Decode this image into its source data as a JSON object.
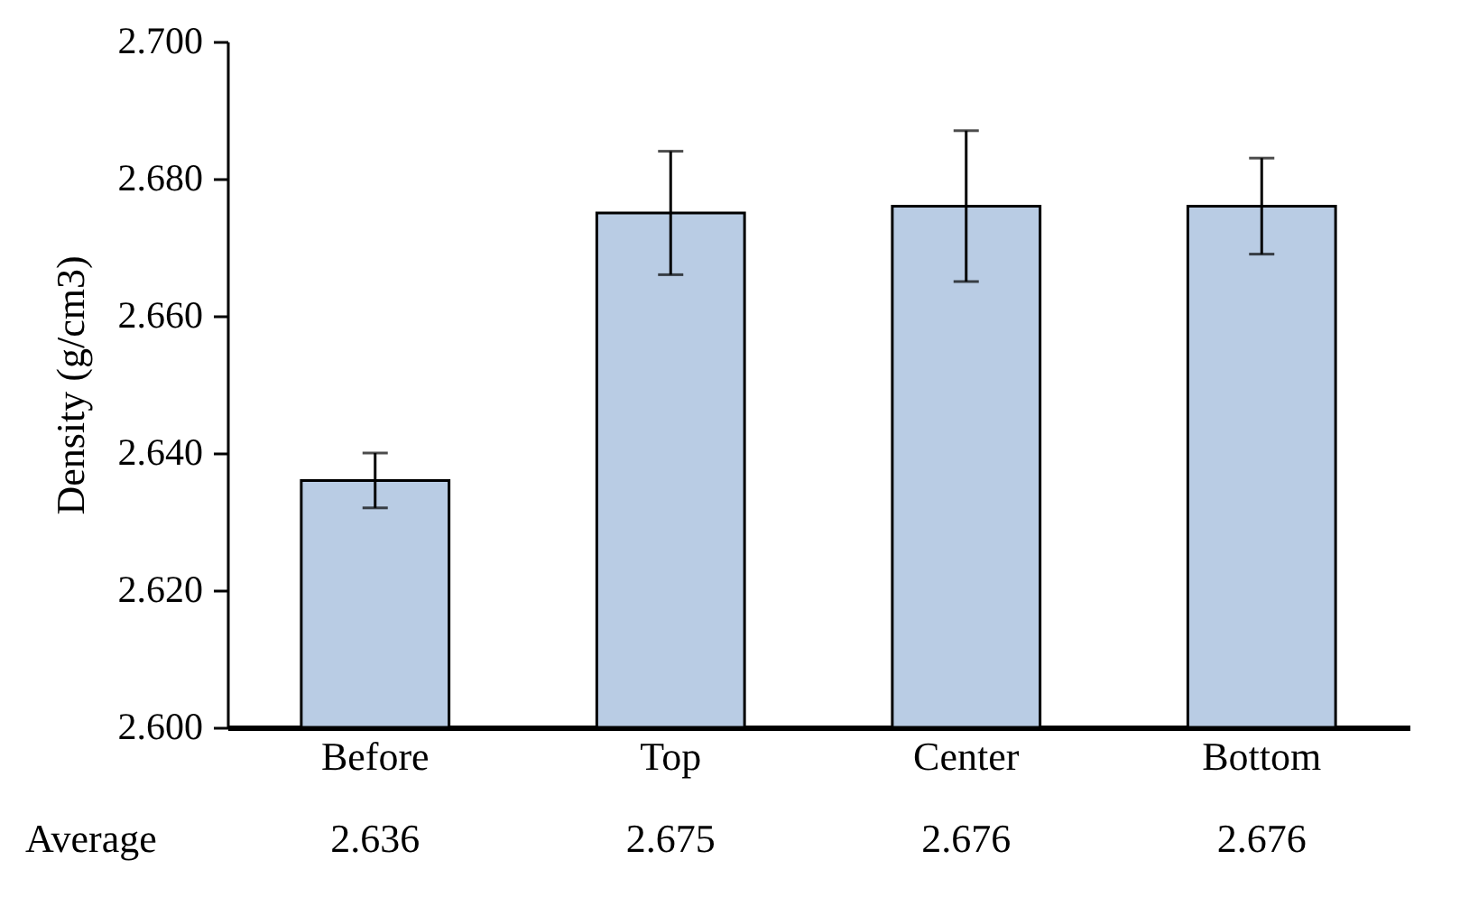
{
  "chart_data": {
    "type": "bar",
    "ylabel": "Density (g/cm3)",
    "categories": [
      "Before",
      "Top",
      "Center",
      "Bottom"
    ],
    "values": [
      2.636,
      2.675,
      2.676,
      2.676
    ],
    "errors": [
      [
        2.632,
        2.64
      ],
      [
        2.666,
        2.684
      ],
      [
        2.665,
        2.687
      ],
      [
        2.669,
        2.683
      ]
    ],
    "color": "#b9cce4",
    "ylim": [
      2.6,
      2.7
    ],
    "yticks": [
      {
        "value": 2.6,
        "label": "2.600"
      },
      {
        "value": 2.62,
        "label": "2.620"
      },
      {
        "value": 2.64,
        "label": "2.640"
      },
      {
        "value": 2.66,
        "label": "2.660"
      },
      {
        "value": 2.68,
        "label": "2.680"
      },
      {
        "value": 2.7,
        "label": "2.700"
      }
    ],
    "data_labels": true,
    "annotations": [
      "Average"
    ],
    "grid": false
  }
}
